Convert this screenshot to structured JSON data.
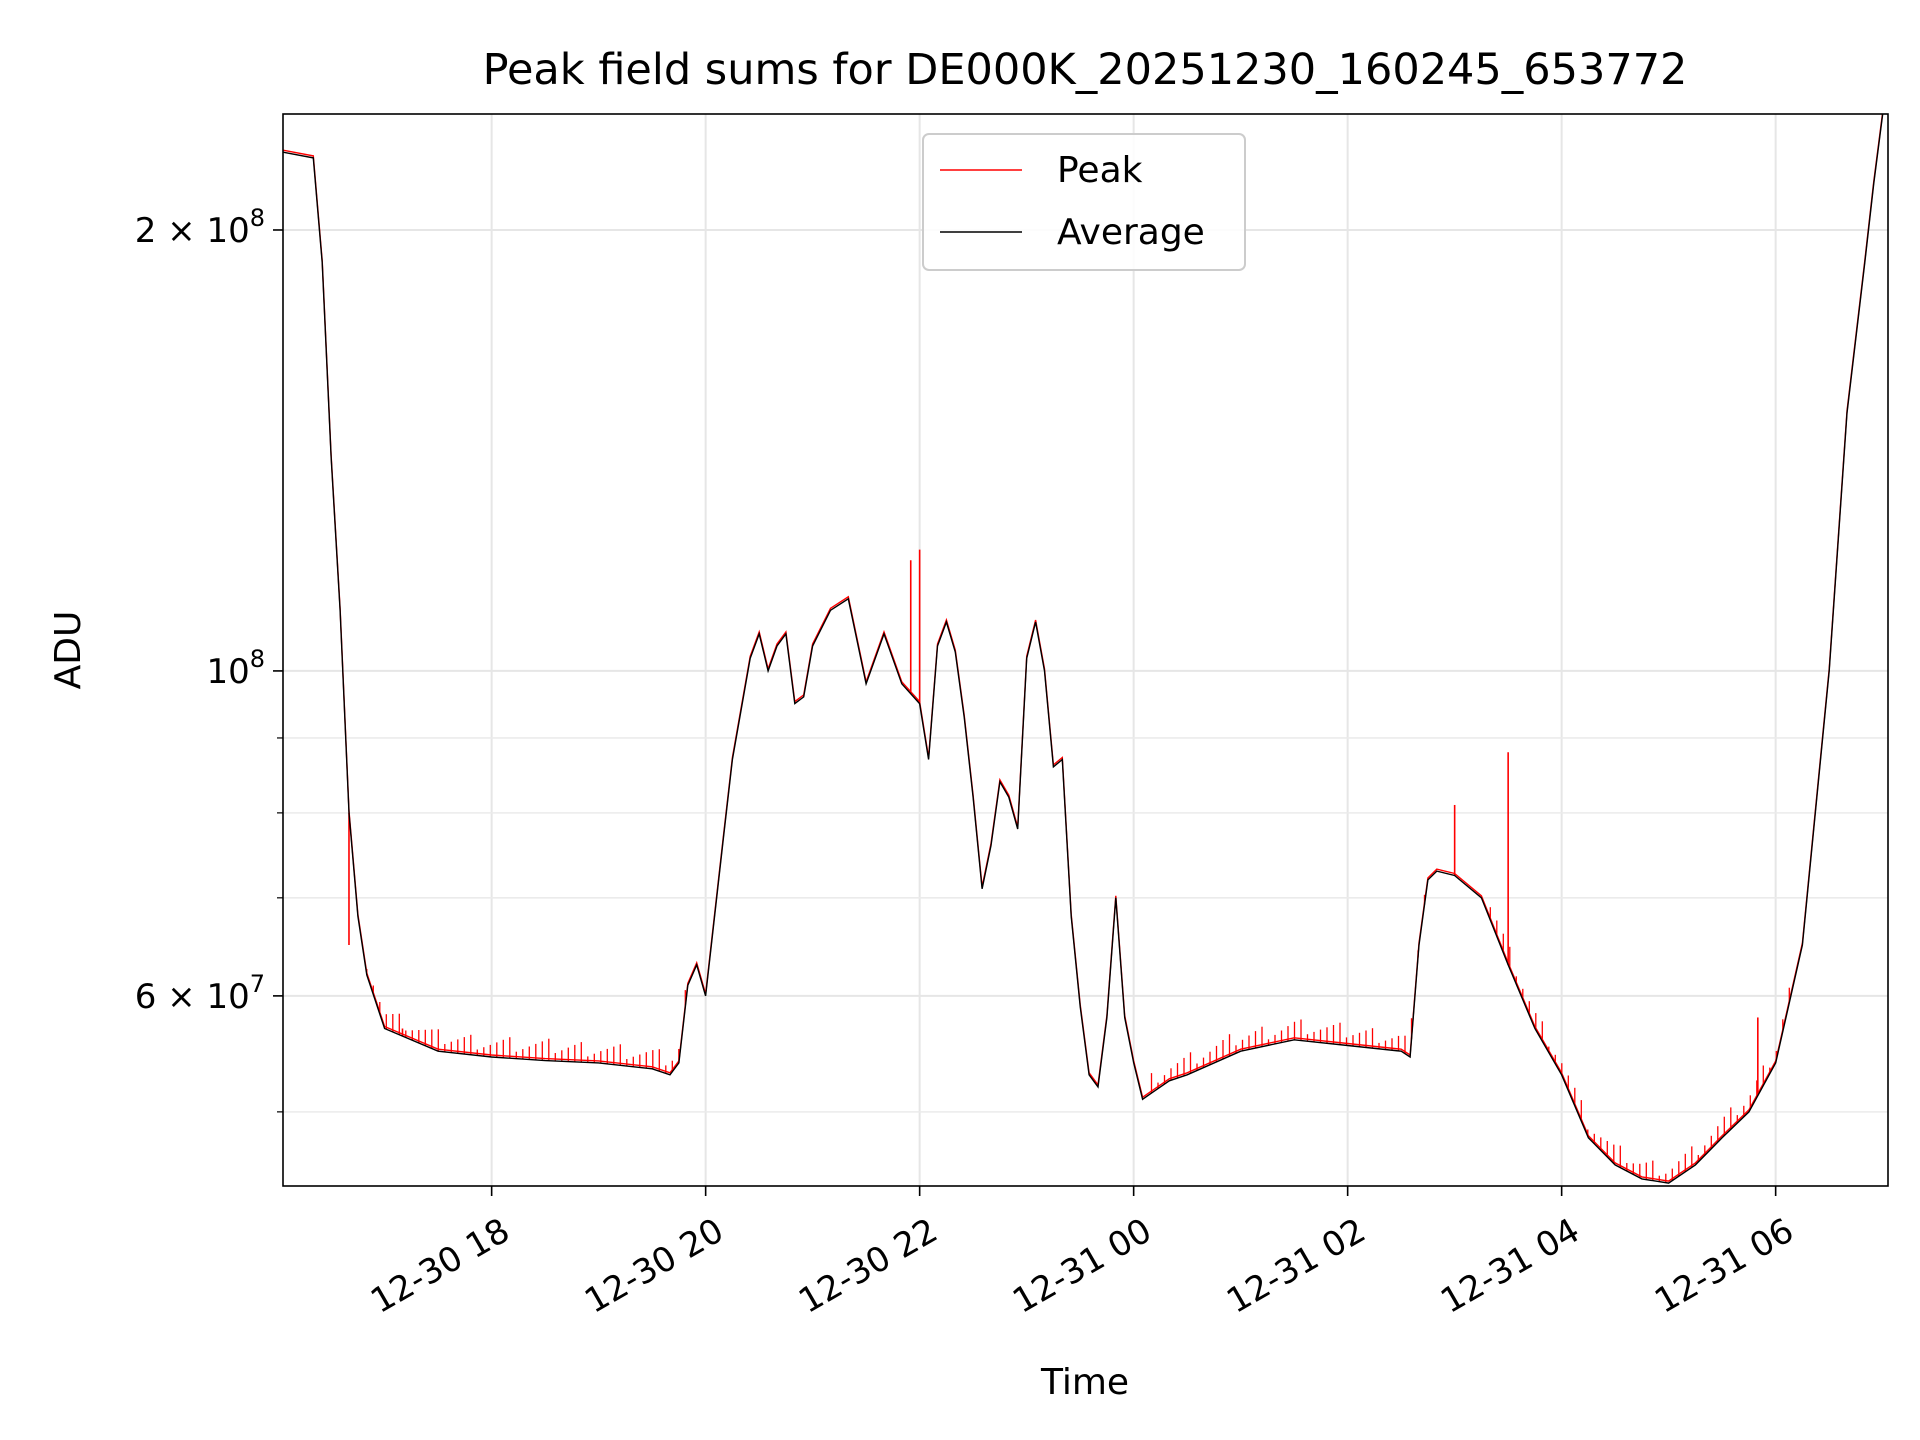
{
  "chart_data": {
    "type": "line",
    "title": "Peak field sums for DE000K_20251230_160245_653772",
    "xlabel": "Time",
    "ylabel": "ADU",
    "yscale": "log",
    "ylim": [
      44500000,
      240000000
    ],
    "xlim": [
      "2025-12-30 16:03",
      "2025-12-31 07:03"
    ],
    "x_ticks": [
      {
        "value": "2025-12-30 18:00",
        "label": "12-30 18"
      },
      {
        "value": "2025-12-30 20:00",
        "label": "12-30 20"
      },
      {
        "value": "2025-12-30 22:00",
        "label": "12-30 22"
      },
      {
        "value": "2025-12-31 00:00",
        "label": "12-31 00"
      },
      {
        "value": "2025-12-31 02:00",
        "label": "12-31 02"
      },
      {
        "value": "2025-12-31 04:00",
        "label": "12-31 04"
      },
      {
        "value": "2025-12-31 06:00",
        "label": "12-31 06"
      }
    ],
    "y_major_ticks": [
      {
        "value": 200000000,
        "base": "2 × 10",
        "exp": "8"
      },
      {
        "value": 100000000,
        "base": "10",
        "exp": "8"
      },
      {
        "value": 60000000,
        "base": "6 × 10",
        "exp": "7"
      }
    ],
    "y_minor_ticks": [
      50000000,
      70000000,
      80000000,
      90000000
    ],
    "grid": true,
    "legend_position": "top-center",
    "series": [
      {
        "name": "Peak",
        "color": "#ff0000",
        "spikes": [
          {
            "x": "2025-12-30 16:40",
            "y": 65000000
          },
          {
            "x": "2025-12-30 17:10",
            "y": 57000000
          },
          {
            "x": "2025-12-30 21:55",
            "y": 119000000
          },
          {
            "x": "2025-12-30 22:00",
            "y": 121000000
          },
          {
            "x": "2025-12-31 03:00",
            "y": 81000000
          },
          {
            "x": "2025-12-31 03:30",
            "y": 88000000
          },
          {
            "x": "2025-12-31 05:50",
            "y": 58000000
          }
        ]
      },
      {
        "name": "Average",
        "color": "#000000",
        "x": [
          "2025-12-30 16:03",
          "2025-12-30 16:20",
          "2025-12-30 16:25",
          "2025-12-30 16:30",
          "2025-12-30 16:35",
          "2025-12-30 16:40",
          "2025-12-30 16:45",
          "2025-12-30 16:50",
          "2025-12-30 17:00",
          "2025-12-30 17:30",
          "2025-12-30 18:00",
          "2025-12-30 18:30",
          "2025-12-30 19:00",
          "2025-12-30 19:30",
          "2025-12-30 19:40",
          "2025-12-30 19:45",
          "2025-12-30 19:50",
          "2025-12-30 19:55",
          "2025-12-30 20:00",
          "2025-12-30 20:10",
          "2025-12-30 20:15",
          "2025-12-30 20:25",
          "2025-12-30 20:30",
          "2025-12-30 20:35",
          "2025-12-30 20:40",
          "2025-12-30 20:45",
          "2025-12-30 20:50",
          "2025-12-30 20:55",
          "2025-12-30 21:00",
          "2025-12-30 21:10",
          "2025-12-30 21:20",
          "2025-12-30 21:30",
          "2025-12-30 21:40",
          "2025-12-30 21:50",
          "2025-12-30 22:00",
          "2025-12-30 22:05",
          "2025-12-30 22:10",
          "2025-12-30 22:15",
          "2025-12-30 22:20",
          "2025-12-30 22:25",
          "2025-12-30 22:30",
          "2025-12-30 22:35",
          "2025-12-30 22:40",
          "2025-12-30 22:45",
          "2025-12-30 22:50",
          "2025-12-30 22:55",
          "2025-12-30 23:00",
          "2025-12-30 23:05",
          "2025-12-30 23:10",
          "2025-12-30 23:15",
          "2025-12-30 23:20",
          "2025-12-30 23:25",
          "2025-12-30 23:30",
          "2025-12-30 23:35",
          "2025-12-30 23:40",
          "2025-12-30 23:45",
          "2025-12-30 23:50",
          "2025-12-30 23:55",
          "2025-12-31 00:00",
          "2025-12-31 00:05",
          "2025-12-31 00:10",
          "2025-12-31 00:15",
          "2025-12-31 00:20",
          "2025-12-31 00:30",
          "2025-12-31 01:00",
          "2025-12-31 01:30",
          "2025-12-31 02:00",
          "2025-12-31 02:30",
          "2025-12-31 02:35",
          "2025-12-31 02:40",
          "2025-12-31 02:45",
          "2025-12-31 02:50",
          "2025-12-31 03:00",
          "2025-12-31 03:15",
          "2025-12-31 03:30",
          "2025-12-31 03:45",
          "2025-12-31 04:00",
          "2025-12-31 04:15",
          "2025-12-31 04:30",
          "2025-12-31 04:45",
          "2025-12-31 05:00",
          "2025-12-31 05:15",
          "2025-12-31 05:30",
          "2025-12-31 05:45",
          "2025-12-31 06:00",
          "2025-12-31 06:15",
          "2025-12-31 06:30",
          "2025-12-31 06:40",
          "2025-12-31 06:50",
          "2025-12-31 06:55",
          "2025-12-31 07:00"
        ],
        "y": [
          226000000,
          224000000,
          190000000,
          140000000,
          110000000,
          80000000,
          68000000,
          62000000,
          57000000,
          55000000,
          54500000,
          54200000,
          54000000,
          53500000,
          53000000,
          54000000,
          61000000,
          63000000,
          60000000,
          77000000,
          87000000,
          102000000,
          106000000,
          100000000,
          104000000,
          106000000,
          95000000,
          96000000,
          104000000,
          110000000,
          112000000,
          98000000,
          106000000,
          98000000,
          95000000,
          87000000,
          104000000,
          108000000,
          103000000,
          93000000,
          82000000,
          71000000,
          76000000,
          84000000,
          82000000,
          78000000,
          102000000,
          108000000,
          100000000,
          86000000,
          87000000,
          68000000,
          59000000,
          53000000,
          52000000,
          58000000,
          70000000,
          58000000,
          54000000,
          51000000,
          51500000,
          52000000,
          52500000,
          53000000,
          55000000,
          56000000,
          55500000,
          55000000,
          54500000,
          65000000,
          72000000,
          73000000,
          72500000,
          70000000,
          63000000,
          57000000,
          53000000,
          48000000,
          46000000,
          45000000,
          44700000,
          46000000,
          48000000,
          50000000,
          54000000,
          65000000,
          100000000,
          150000000,
          190000000,
          215000000,
          240000000
        ]
      }
    ]
  }
}
